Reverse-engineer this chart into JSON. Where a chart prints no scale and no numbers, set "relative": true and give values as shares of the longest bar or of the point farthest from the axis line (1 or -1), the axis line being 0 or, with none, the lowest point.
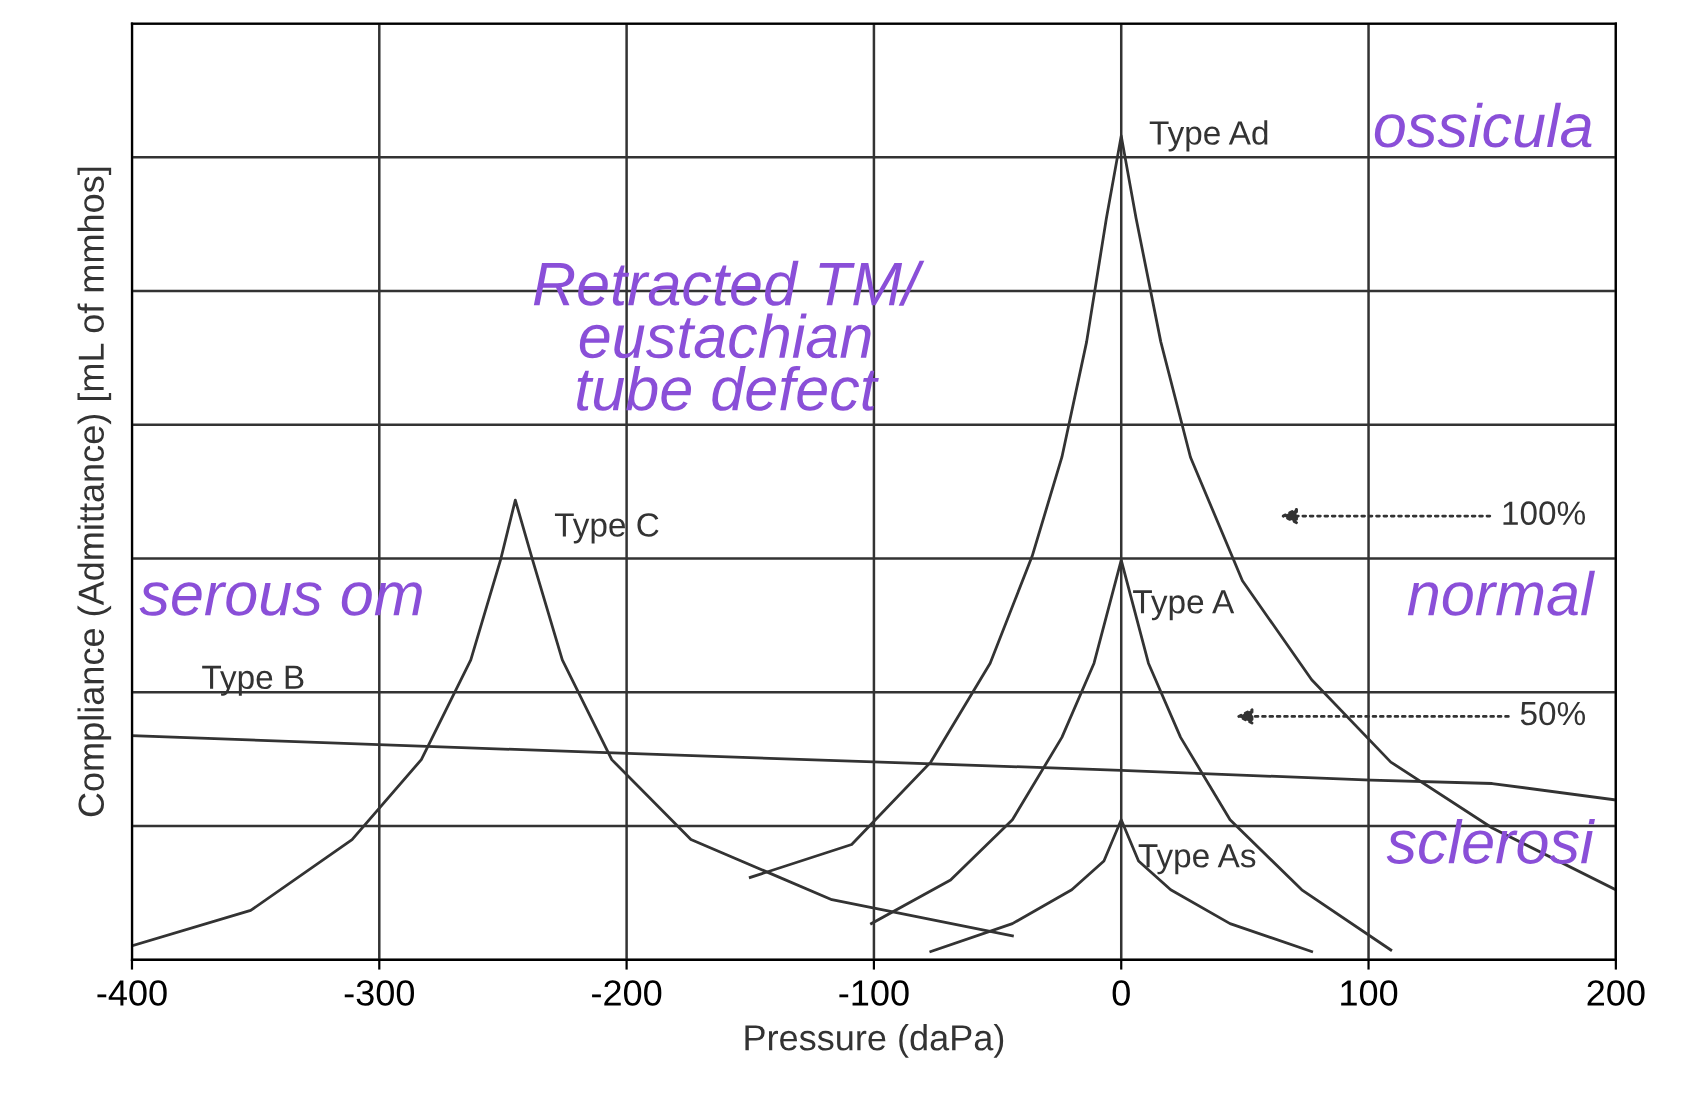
{
  "chart_data": {
    "type": "line",
    "relative": true,
    "xlabel": "Pressure (daPa)",
    "ylabel": "Compliance (Admittance) [mL of mmhos]",
    "xlim": [
      -400,
      200
    ],
    "xticks": [
      -400,
      -300,
      -200,
      -100,
      0,
      100,
      200
    ],
    "grid": true,
    "marker": "none",
    "line_style": "solid",
    "series": [
      {
        "name": "Type Ad",
        "color": "#333333",
        "x": [
          -150,
          -109,
          -77,
          -53,
          -36,
          -24,
          -14,
          -6,
          0,
          6,
          16,
          28,
          49,
          77,
          109,
          150,
          200
        ],
        "values": [
          0.1,
          0.14,
          0.24,
          0.36,
          0.49,
          0.61,
          0.75,
          0.9,
          1.0,
          0.9,
          0.75,
          0.61,
          0.46,
          0.34,
          0.24,
          0.16,
          0.085
        ]
      },
      {
        "name": "Type A",
        "color": "#333333",
        "x": [
          -101,
          -69,
          -44,
          -24,
          -11,
          0,
          11,
          24,
          44,
          73,
          109
        ],
        "values": [
          0.044,
          0.097,
          0.17,
          0.27,
          0.36,
          0.485,
          0.36,
          0.27,
          0.17,
          0.085,
          0.012
        ]
      },
      {
        "name": "Type As",
        "color": "#333333",
        "x": [
          -77,
          -44,
          -20,
          -7,
          0,
          7,
          20,
          44,
          77
        ],
        "values": [
          0.01,
          0.044,
          0.085,
          0.12,
          0.17,
          0.12,
          0.085,
          0.044,
          0.01
        ]
      },
      {
        "name": "Type C",
        "color": "#333333",
        "x": [
          -400,
          -352,
          -311,
          -283,
          -263,
          -251,
          -245,
          -238,
          -226,
          -206,
          -174,
          -117,
          -44
        ],
        "values": [
          0.017,
          0.06,
          0.146,
          0.243,
          0.364,
          0.485,
          0.558,
          0.485,
          0.364,
          0.243,
          0.146,
          0.073,
          0.029
        ]
      },
      {
        "name": "Type B",
        "color": "#333333",
        "x": [
          -400,
          -214,
          0,
          101,
          150,
          200
        ],
        "values": [
          0.272,
          0.252,
          0.23,
          0.218,
          0.214,
          0.194
        ]
      }
    ],
    "annotations": [
      "100%",
      "50%",
      "ossicula",
      "Retracted TM/\neustachian\ntube defect",
      "normal",
      "serous om",
      "sclerosi"
    ]
  }
}
